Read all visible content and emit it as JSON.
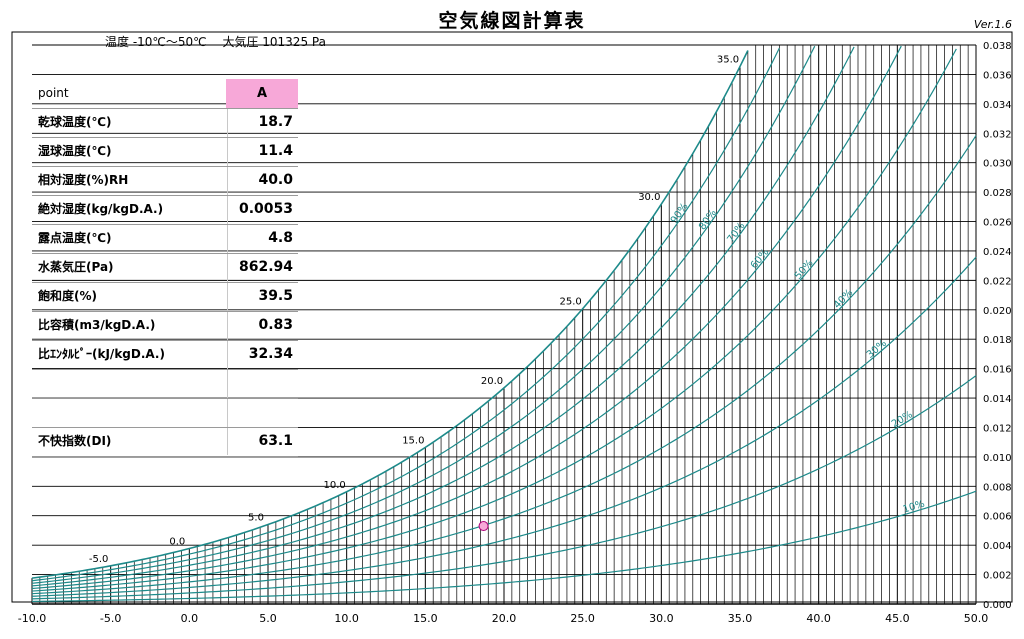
{
  "header": {
    "title": "空気線図計算表",
    "version": "Ver.1.6",
    "subtitle": "温度 -10℃～50℃　 大気圧 101325 Pa"
  },
  "table": {
    "header_label": "point",
    "point_name": "A",
    "rows": [
      {
        "label": "乾球温度(℃)",
        "value": "18.7"
      },
      {
        "label": "湿球温度(℃)",
        "value": "11.4"
      },
      {
        "label": "相対湿度(%)RH",
        "value": "40.0"
      },
      {
        "label": "絶対湿度(kg/kgD.A.)",
        "value": "0.0053"
      },
      {
        "label": "露点温度(℃)",
        "value": "4.8"
      },
      {
        "label": "水蒸気圧(Pa)",
        "value": "862.94"
      },
      {
        "label": "飽和度(%)",
        "value": "39.5"
      },
      {
        "label": "比容積(m3/kgD.A.)",
        "value": "0.83"
      },
      {
        "label": "比ｴﾝﾀﾙﾋﾟｰ(kJ/kgD.A.)",
        "value": "32.34"
      },
      {
        "label": "",
        "value": ""
      },
      {
        "label": "",
        "value": ""
      },
      {
        "label": "不快指数(DI)",
        "value": "63.1"
      }
    ]
  },
  "chart_data": {
    "type": "line",
    "xlim": [
      -10,
      50
    ],
    "ylim": [
      0,
      0.038
    ],
    "x_ticks": [
      "-10.0",
      "-5.0",
      "0.0",
      "5.0",
      "10.0",
      "15.0",
      "20.0",
      "25.0",
      "30.0",
      "35.0",
      "40.0",
      "45.0",
      "50.0"
    ],
    "y_ticks": [
      "0.000",
      "0.002",
      "0.004",
      "0.006",
      "0.008",
      "0.010",
      "0.012",
      "0.014",
      "0.016",
      "0.018",
      "0.020",
      "0.022",
      "0.024",
      "0.026",
      "0.028",
      "0.030",
      "0.032",
      "0.034",
      "0.036",
      "0.038"
    ],
    "saturation_labels": [
      {
        "t": -5,
        "text": "-5.0"
      },
      {
        "t": 0,
        "text": "0.0"
      },
      {
        "t": 5,
        "text": "5.0"
      },
      {
        "t": 10,
        "text": "10.0"
      },
      {
        "t": 15,
        "text": "15.0"
      },
      {
        "t": 20,
        "text": "20.0"
      },
      {
        "t": 25,
        "text": "25.0"
      },
      {
        "t": 30,
        "text": "30.0"
      },
      {
        "t": 35,
        "text": "35.0"
      }
    ],
    "rh_curves": [
      100,
      90,
      80,
      70,
      60,
      50,
      40,
      30,
      20,
      10
    ],
    "rh_labels": [
      {
        "rh": 90,
        "text": "90%"
      },
      {
        "rh": 80,
        "text": "80%"
      },
      {
        "rh": 70,
        "text": "70%"
      },
      {
        "rh": 60,
        "text": "60%"
      },
      {
        "rh": 50,
        "text": "50%"
      },
      {
        "rh": 40,
        "text": "40%"
      },
      {
        "rh": 30,
        "text": "30%"
      },
      {
        "rh": 20,
        "text": "20%"
      },
      {
        "rh": 10,
        "text": "10%"
      }
    ],
    "point": {
      "name": "A",
      "dry_bulb": 18.7,
      "abs_humidity": 0.0053
    },
    "pressure_pa": 101325,
    "colors": {
      "curve": "#1d8a8a",
      "grid": "#000000",
      "point_fill": "#f7a8d8",
      "point_stroke": "#b0007a"
    }
  }
}
